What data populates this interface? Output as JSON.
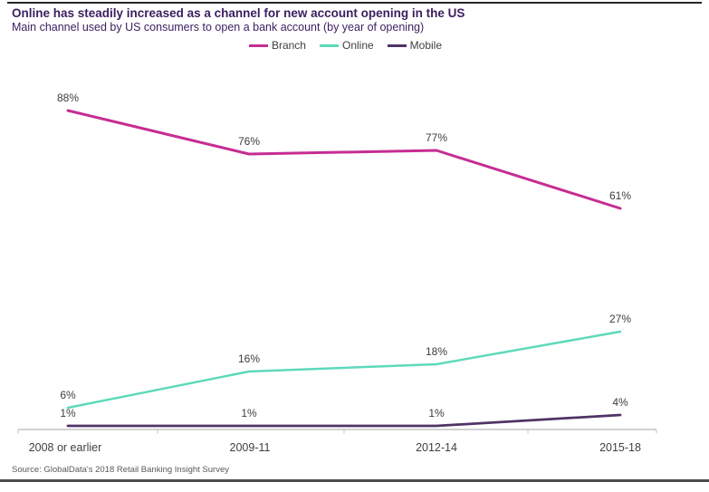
{
  "header": {
    "title": "Online has steadily increased as a channel for new account opening in the US",
    "subtitle": "Main channel used by US consumers to open a bank account (by year of opening)"
  },
  "chart_data": {
    "type": "line",
    "categories": [
      "2008 or earlier",
      "2009-11",
      "2012-14",
      "2015-18"
    ],
    "series": [
      {
        "name": "Branch",
        "color": "#c62d92",
        "values": [
          88,
          76,
          77,
          61
        ]
      },
      {
        "name": "Online",
        "color": "#5ed9bb",
        "values": [
          6,
          16,
          18,
          27
        ]
      },
      {
        "name": "Mobile",
        "color": "#503367",
        "values": [
          1,
          1,
          1,
          4
        ]
      }
    ],
    "value_suffix": "%",
    "ylim": [
      0,
      100
    ],
    "grid": false,
    "legend_position": "top",
    "data_labels": true,
    "axis_color": "#c3c3c3"
  },
  "footer": {
    "source": "Source: GlobalData's 2018 Retail Banking Insight Survey"
  }
}
